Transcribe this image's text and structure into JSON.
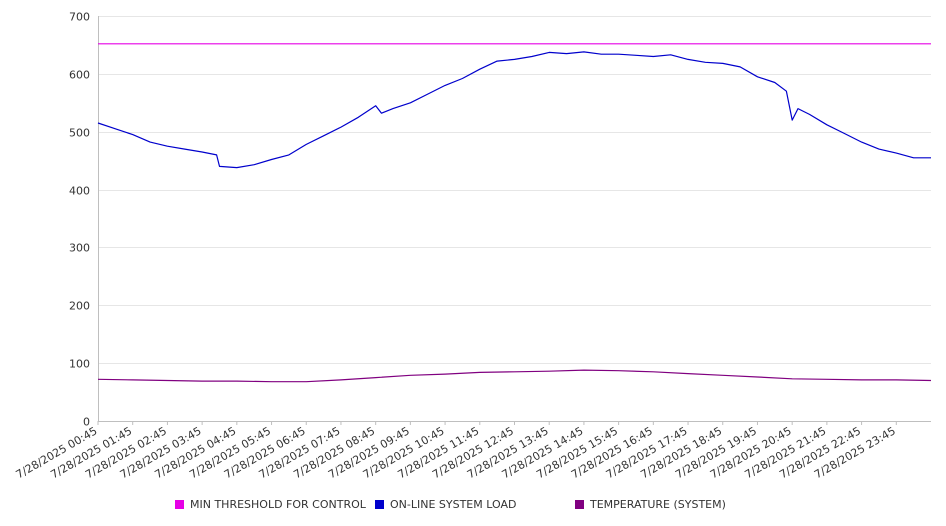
{
  "chart_data": {
    "type": "line",
    "ylim": [
      0,
      700
    ],
    "yticks": [
      0,
      100,
      200,
      300,
      400,
      500,
      600,
      700
    ],
    "x_tick_labels": [
      "7/28/2025 00:45",
      "7/28/2025 01:45",
      "7/28/2025 02:45",
      "7/28/2025 03:45",
      "7/28/2025 04:45",
      "7/28/2025 05:45",
      "7/28/2025 06:45",
      "7/28/2025 07:45",
      "7/28/2025 08:45",
      "7/28/2025 09:45",
      "7/28/2025 10:45",
      "7/28/2025 11:45",
      "7/28/2025 12:45",
      "7/28/2025 13:45",
      "7/28/2025 14:45",
      "7/28/2025 15:45",
      "7/28/2025 16:45",
      "7/28/2025 17:45",
      "7/28/2025 18:45",
      "7/28/2025 19:45",
      "7/28/2025 20:45",
      "7/28/2025 21:45",
      "7/28/2025 22:45",
      "7/28/2025 23:45"
    ],
    "x_range": [
      "7/28/2025 00:45",
      "7/29/2025 00:45"
    ],
    "grid": true,
    "legend_position": "bottom",
    "series": [
      {
        "name": "MIN THRESHOLD FOR CONTROL",
        "color": "#e600e6",
        "x": [
          "7/28/2025 00:45",
          "7/29/2025 00:45"
        ],
        "values": [
          652,
          652
        ]
      },
      {
        "name": "ON-LINE SYSTEM LOAD",
        "color": "#0000cc",
        "x": [
          "7/28/2025 00:45",
          "7/28/2025 01:15",
          "7/28/2025 01:45",
          "7/28/2025 02:15",
          "7/28/2025 02:45",
          "7/28/2025 03:15",
          "7/28/2025 03:45",
          "7/28/2025 04:10",
          "7/28/2025 04:15",
          "7/28/2025 04:45",
          "7/28/2025 05:15",
          "7/28/2025 05:45",
          "7/28/2025 06:15",
          "7/28/2025 06:45",
          "7/28/2025 07:15",
          "7/28/2025 07:45",
          "7/28/2025 08:15",
          "7/28/2025 08:45",
          "7/28/2025 08:55",
          "7/28/2025 09:15",
          "7/28/2025 09:45",
          "7/28/2025 10:15",
          "7/28/2025 10:45",
          "7/28/2025 11:15",
          "7/28/2025 11:45",
          "7/28/2025 12:15",
          "7/28/2025 12:45",
          "7/28/2025 13:15",
          "7/28/2025 13:45",
          "7/28/2025 14:15",
          "7/28/2025 14:45",
          "7/28/2025 15:15",
          "7/28/2025 15:45",
          "7/28/2025 16:15",
          "7/28/2025 16:45",
          "7/28/2025 17:15",
          "7/28/2025 17:45",
          "7/28/2025 18:15",
          "7/28/2025 18:45",
          "7/28/2025 19:15",
          "7/28/2025 19:45",
          "7/28/2025 20:15",
          "7/28/2025 20:35",
          "7/28/2025 20:45",
          "7/28/2025 20:55",
          "7/28/2025 21:05",
          "7/28/2025 21:15",
          "7/28/2025 21:45",
          "7/28/2025 22:15",
          "7/28/2025 22:45",
          "7/28/2025 23:15",
          "7/28/2025 23:45",
          "7/29/2025 00:15",
          "7/29/2025 00:45"
        ],
        "values": [
          515,
          505,
          495,
          482,
          475,
          470,
          465,
          460,
          440,
          438,
          443,
          452,
          460,
          478,
          493,
          508,
          525,
          545,
          532,
          540,
          550,
          565,
          580,
          592,
          608,
          622,
          625,
          630,
          637,
          635,
          638,
          634,
          634,
          632,
          630,
          633,
          625,
          620,
          618,
          612,
          595,
          585,
          570,
          520,
          540,
          535,
          530,
          512,
          497,
          482,
          470,
          463,
          455,
          455
        ]
      },
      {
        "name": "TEMPERATURE (SYSTEM)",
        "color": "#800080",
        "x": [
          "7/28/2025 00:45",
          "7/28/2025 01:45",
          "7/28/2025 02:45",
          "7/28/2025 03:45",
          "7/28/2025 04:45",
          "7/28/2025 05:45",
          "7/28/2025 06:45",
          "7/28/2025 07:45",
          "7/28/2025 08:45",
          "7/28/2025 09:45",
          "7/28/2025 10:45",
          "7/28/2025 11:45",
          "7/28/2025 12:45",
          "7/28/2025 13:45",
          "7/28/2025 14:45",
          "7/28/2025 15:45",
          "7/28/2025 16:45",
          "7/28/2025 17:45",
          "7/28/2025 18:45",
          "7/28/2025 19:45",
          "7/28/2025 20:45",
          "7/28/2025 21:45",
          "7/28/2025 22:45",
          "7/28/2025 23:45",
          "7/29/2025 00:45"
        ],
        "values": [
          72,
          71,
          70,
          69,
          69,
          68,
          68,
          71,
          75,
          79,
          81,
          84,
          85,
          86,
          88,
          87,
          85,
          82,
          79,
          76,
          73,
          72,
          71,
          71,
          70
        ]
      }
    ]
  }
}
